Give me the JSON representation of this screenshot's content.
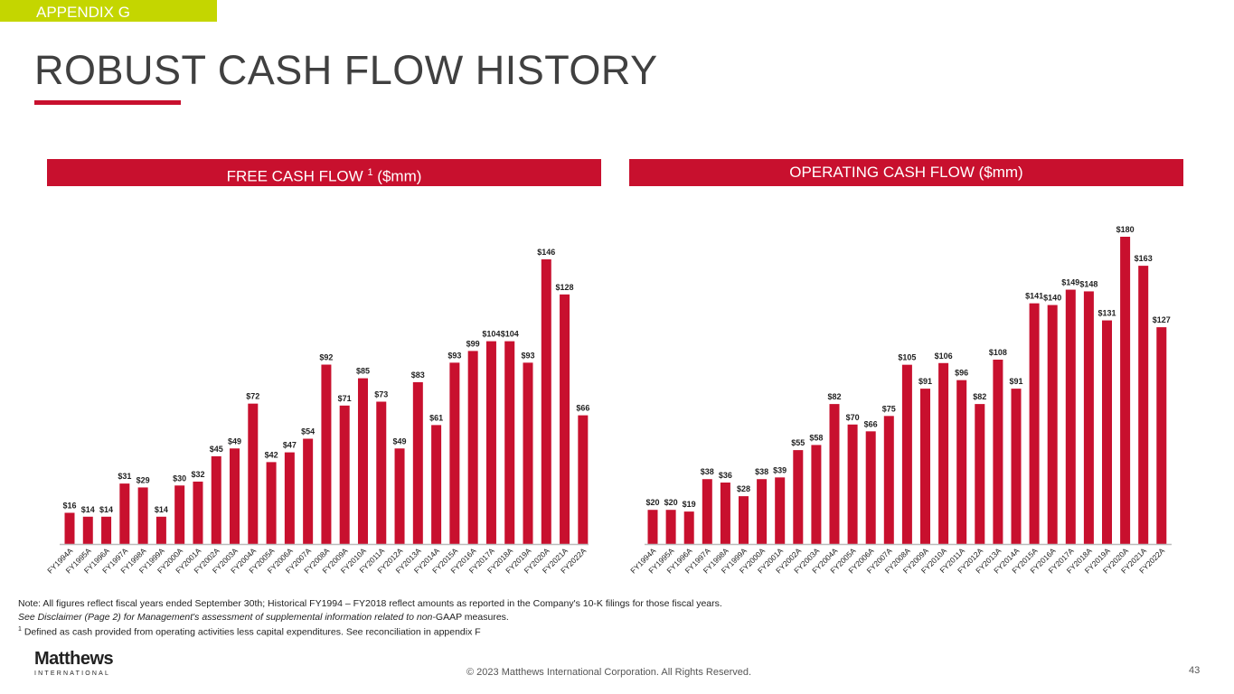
{
  "appendix_label": "APPENDIX G",
  "title": "ROBUST CASH FLOW HISTORY",
  "accent": "#c8102e",
  "chart_data": [
    {
      "type": "bar",
      "title": "FREE CASH FLOW",
      "title_sup": "1",
      "title_unit": "($mm)",
      "categories": [
        "FY1994A",
        "FY1995A",
        "FY1996A",
        "FY1997A",
        "FY1998A",
        "FY1999A",
        "FY2000A",
        "FY2001A",
        "FY2002A",
        "FY2003A",
        "FY2004A",
        "FY2005A",
        "FY2006A",
        "FY2007A",
        "FY2008A",
        "FY2009A",
        "FY2010A",
        "FY2011A",
        "FY2012A",
        "FY2013A",
        "FY2014A",
        "FY2015A",
        "FY2016A",
        "FY2017A",
        "FY2018A",
        "FY2019A",
        "FY2020A",
        "FY2021A",
        "FY2022A"
      ],
      "values": [
        16,
        14,
        14,
        31,
        29,
        14,
        30,
        32,
        45,
        49,
        72,
        42,
        47,
        54,
        92,
        71,
        85,
        73,
        49,
        83,
        61,
        93,
        99,
        104,
        104,
        93,
        146,
        128,
        66
      ],
      "value_prefix": "$",
      "grid": false,
      "color": "#c8102e"
    },
    {
      "type": "bar",
      "title": "OPERATING CASH FLOW ($mm)",
      "categories": [
        "FY1994A",
        "FY1995A",
        "FY1996A",
        "FY1997A",
        "FY1998A",
        "FY1999A",
        "FY2000A",
        "FY2001A",
        "FY2002A",
        "FY2003A",
        "FY2004A",
        "FY2005A",
        "FY2006A",
        "FY2007A",
        "FY2008A",
        "FY2009A",
        "FY2010A",
        "FY2011A",
        "FY2012A",
        "FY2013A",
        "FY2014A",
        "FY2015A",
        "FY2016A",
        "FY2017A",
        "FY2018A",
        "FY2019A",
        "FY2020A",
        "FY2021A",
        "FY2022A"
      ],
      "values": [
        20,
        20,
        19,
        38,
        36,
        28,
        38,
        39,
        55,
        58,
        82,
        70,
        66,
        75,
        105,
        91,
        106,
        96,
        82,
        108,
        91,
        141,
        140,
        149,
        148,
        131,
        180,
        163,
        127
      ],
      "value_prefix": "$",
      "grid": false,
      "color": "#c8102e"
    }
  ],
  "notes": {
    "line1": "Note: All figures reflect fiscal years ended September 30th; Historical FY1994 – FY2018 reflect amounts as reported in the Company's 10-K filings for those fiscal years.",
    "line2_italic": "See Disclaimer (Page 2) for Management's assessment of supplemental information related to non-",
    "line2_rest": "GAAP measures.",
    "footnote_mark": "1",
    "footnote": " Defined as cash provided from operating activities less capital expenditures. See reconciliation in appendix F"
  },
  "logo": {
    "name": "Matthews",
    "sub": "INTERNATIONAL"
  },
  "copyright": "© 2023 Matthews International Corporation. All Rights Reserved.",
  "page_number": "43"
}
